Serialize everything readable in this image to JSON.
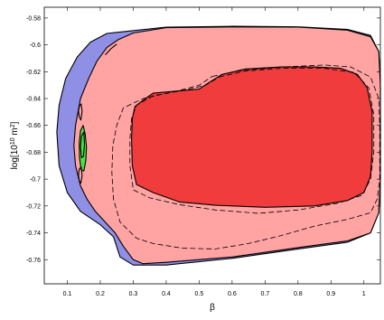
{
  "chart_data": {
    "type": "contour",
    "title": "",
    "xlabel": "β",
    "ylabel": "log[10",
    "ylabel_sup1": "10",
    "ylabel_mid": " m",
    "ylabel_sup2": "2",
    "ylabel_end": "]",
    "xlim": [
      0.03,
      1.05
    ],
    "ylim": [
      -0.778,
      -0.572
    ],
    "xticks": [
      0.1,
      0.2,
      0.3,
      0.4,
      0.5,
      0.6,
      0.7,
      0.8,
      0.9,
      1
    ],
    "xtick_labels": [
      "0.1",
      "0.2",
      "0.3",
      "0.4",
      "0.5",
      "0.6",
      "0.7",
      "0.8",
      "0.9",
      "1"
    ],
    "yticks": [
      -0.58,
      -0.6,
      -0.62,
      -0.64,
      -0.66,
      -0.68,
      -0.7,
      -0.72,
      -0.74,
      -0.76
    ],
    "ytick_labels": [
      "-0.58",
      "-0.6",
      "-0.62",
      "-0.64",
      "-0.66",
      "-0.68",
      "-0.7",
      "-0.72",
      "-0.74",
      "-0.76"
    ],
    "grid": false,
    "colors": {
      "blue_region": "#8f8fe6",
      "light_red_region": "#ffa3a3",
      "dark_red_region": "#f03c3c",
      "green_region": "#44e444",
      "outline": "#000000",
      "frame": "#000000"
    },
    "regions": [
      {
        "id": "blue-contour",
        "fill": "#8f8fe6",
        "style": "solid",
        "points": [
          [
            0.22,
            -0.5915
          ],
          [
            0.4,
            -0.5868
          ],
          [
            0.6,
            -0.5862
          ],
          [
            0.8,
            -0.5866
          ],
          [
            0.95,
            -0.5885
          ],
          [
            1.02,
            -0.593
          ],
          [
            1.045,
            -0.605
          ],
          [
            1.05,
            -0.63
          ],
          [
            1.05,
            -0.66
          ],
          [
            1.05,
            -0.7
          ],
          [
            1.045,
            -0.725
          ],
          [
            1.02,
            -0.74
          ],
          [
            0.95,
            -0.747
          ],
          [
            0.8,
            -0.752
          ],
          [
            0.6,
            -0.759
          ],
          [
            0.4,
            -0.764
          ],
          [
            0.3,
            -0.764
          ],
          [
            0.26,
            -0.758
          ],
          [
            0.24,
            -0.743
          ],
          [
            0.2,
            -0.734
          ],
          [
            0.14,
            -0.724
          ],
          [
            0.1,
            -0.71
          ],
          [
            0.075,
            -0.69
          ],
          [
            0.068,
            -0.665
          ],
          [
            0.075,
            -0.645
          ],
          [
            0.095,
            -0.625
          ],
          [
            0.13,
            -0.609
          ],
          [
            0.17,
            -0.598
          ]
        ]
      },
      {
        "id": "light-red-contour",
        "fill": "#ffa3a3",
        "style": "solid",
        "points": [
          [
            0.3,
            -0.5912
          ],
          [
            0.4,
            -0.5872
          ],
          [
            0.6,
            -0.5867
          ],
          [
            0.8,
            -0.5868
          ],
          [
            0.95,
            -0.589
          ],
          [
            1.02,
            -0.594
          ],
          [
            1.045,
            -0.605
          ],
          [
            1.05,
            -0.63
          ],
          [
            1.05,
            -0.66
          ],
          [
            1.05,
            -0.7
          ],
          [
            1.045,
            -0.725
          ],
          [
            1.02,
            -0.74
          ],
          [
            0.95,
            -0.746
          ],
          [
            0.8,
            -0.751
          ],
          [
            0.6,
            -0.758
          ],
          [
            0.4,
            -0.762
          ],
          [
            0.33,
            -0.763
          ],
          [
            0.3,
            -0.76
          ],
          [
            0.27,
            -0.75
          ],
          [
            0.245,
            -0.74
          ],
          [
            0.215,
            -0.732
          ],
          [
            0.185,
            -0.724
          ],
          [
            0.16,
            -0.715
          ],
          [
            0.14,
            -0.705
          ],
          [
            0.125,
            -0.69
          ],
          [
            0.12,
            -0.675
          ],
          [
            0.125,
            -0.66
          ],
          [
            0.14,
            -0.64
          ],
          [
            0.165,
            -0.625
          ],
          [
            0.19,
            -0.612
          ],
          [
            0.22,
            -0.602
          ],
          [
            0.255,
            -0.596
          ]
        ]
      },
      {
        "id": "dark-red-contour",
        "fill": "#f03c3c",
        "style": "solid",
        "points": [
          [
            0.32,
            -0.643
          ],
          [
            0.36,
            -0.636
          ],
          [
            0.5,
            -0.633
          ],
          [
            0.53,
            -0.628
          ],
          [
            0.57,
            -0.622
          ],
          [
            0.64,
            -0.618
          ],
          [
            0.75,
            -0.6165
          ],
          [
            0.85,
            -0.6165
          ],
          [
            0.93,
            -0.6175
          ],
          [
            0.98,
            -0.622
          ],
          [
            1.01,
            -0.632
          ],
          [
            1.025,
            -0.65
          ],
          [
            1.025,
            -0.68
          ],
          [
            1.02,
            -0.698
          ],
          [
            1.0,
            -0.71
          ],
          [
            0.95,
            -0.716
          ],
          [
            0.85,
            -0.72
          ],
          [
            0.7,
            -0.721
          ],
          [
            0.55,
            -0.7195
          ],
          [
            0.44,
            -0.717
          ],
          [
            0.36,
            -0.71
          ],
          [
            0.31,
            -0.704
          ],
          [
            0.297,
            -0.69
          ],
          [
            0.295,
            -0.67
          ],
          [
            0.297,
            -0.655
          ],
          [
            0.305,
            -0.646
          ]
        ]
      },
      {
        "id": "green-contour",
        "fill": "#44e444",
        "style": "solid",
        "points": [
          [
            0.14,
            -0.664
          ],
          [
            0.148,
            -0.66
          ],
          [
            0.154,
            -0.666
          ],
          [
            0.158,
            -0.676
          ],
          [
            0.156,
            -0.686
          ],
          [
            0.15,
            -0.694
          ],
          [
            0.142,
            -0.693
          ],
          [
            0.137,
            -0.684
          ],
          [
            0.136,
            -0.673
          ]
        ]
      },
      {
        "id": "dash-outer",
        "fill": "none",
        "style": "dash",
        "points": [
          [
            0.54,
            -0.6235
          ],
          [
            0.62,
            -0.6195
          ],
          [
            0.75,
            -0.6165
          ],
          [
            0.88,
            -0.615
          ],
          [
            0.96,
            -0.6165
          ],
          [
            1.02,
            -0.624
          ],
          [
            1.045,
            -0.64
          ],
          [
            1.048,
            -0.66
          ],
          [
            1.048,
            -0.7
          ],
          [
            1.04,
            -0.715
          ],
          [
            1.02,
            -0.725
          ],
          [
            0.95,
            -0.73
          ],
          [
            0.85,
            -0.735
          ],
          [
            0.75,
            -0.742
          ],
          [
            0.65,
            -0.748
          ],
          [
            0.55,
            -0.752
          ],
          [
            0.45,
            -0.7515
          ],
          [
            0.36,
            -0.748
          ],
          [
            0.31,
            -0.744
          ],
          [
            0.26,
            -0.732
          ],
          [
            0.24,
            -0.715
          ],
          [
            0.235,
            -0.695
          ],
          [
            0.238,
            -0.675
          ],
          [
            0.25,
            -0.66
          ],
          [
            0.27,
            -0.647
          ],
          [
            0.33,
            -0.64
          ],
          [
            0.44,
            -0.634
          ],
          [
            0.5,
            -0.63
          ]
        ]
      },
      {
        "id": "dash-inner",
        "fill": "none",
        "style": "dash",
        "points": [
          [
            0.56,
            -0.624
          ],
          [
            0.64,
            -0.6195
          ],
          [
            0.75,
            -0.6175
          ],
          [
            0.88,
            -0.6175
          ],
          [
            0.97,
            -0.6205
          ],
          [
            1.015,
            -0.632
          ],
          [
            1.03,
            -0.652
          ],
          [
            1.03,
            -0.68
          ],
          [
            1.02,
            -0.7
          ],
          [
            0.995,
            -0.712
          ],
          [
            0.92,
            -0.718
          ],
          [
            0.8,
            -0.723
          ],
          [
            0.68,
            -0.7255
          ],
          [
            0.55,
            -0.723
          ],
          [
            0.44,
            -0.719
          ],
          [
            0.35,
            -0.714
          ],
          [
            0.3,
            -0.708
          ],
          [
            0.29,
            -0.69
          ],
          [
            0.29,
            -0.67
          ],
          [
            0.295,
            -0.655
          ],
          [
            0.31,
            -0.645
          ],
          [
            0.36,
            -0.638
          ],
          [
            0.46,
            -0.6335
          ],
          [
            0.52,
            -0.63
          ]
        ]
      },
      {
        "id": "green-core",
        "fill": "none",
        "style": "solid",
        "points": [
          [
            0.143,
            -0.668
          ],
          [
            0.15,
            -0.665
          ],
          [
            0.152,
            -0.674
          ],
          [
            0.149,
            -0.683
          ],
          [
            0.143,
            -0.684
          ],
          [
            0.14,
            -0.676
          ]
        ]
      },
      {
        "id": "green-dot-upper",
        "fill": "none",
        "style": "solid",
        "points": [
          [
            0.137,
            -0.6455
          ],
          [
            0.142,
            -0.644
          ],
          [
            0.145,
            -0.6495
          ],
          [
            0.141,
            -0.656
          ],
          [
            0.136,
            -0.6535
          ],
          [
            0.134,
            -0.649
          ]
        ]
      },
      {
        "id": "green-dot-lower",
        "fill": "none",
        "style": "solid",
        "points": [
          [
            0.136,
            -0.6925
          ],
          [
            0.142,
            -0.691
          ],
          [
            0.145,
            -0.6975
          ],
          [
            0.141,
            -0.703
          ],
          [
            0.136,
            -0.701
          ],
          [
            0.134,
            -0.697
          ]
        ]
      },
      {
        "id": "blue-notch",
        "fill": "none",
        "style": "solid",
        "points": [
          [
            0.215,
            -0.6075
          ],
          [
            0.232,
            -0.603
          ],
          [
            0.25,
            -0.5995
          ]
        ]
      }
    ]
  }
}
